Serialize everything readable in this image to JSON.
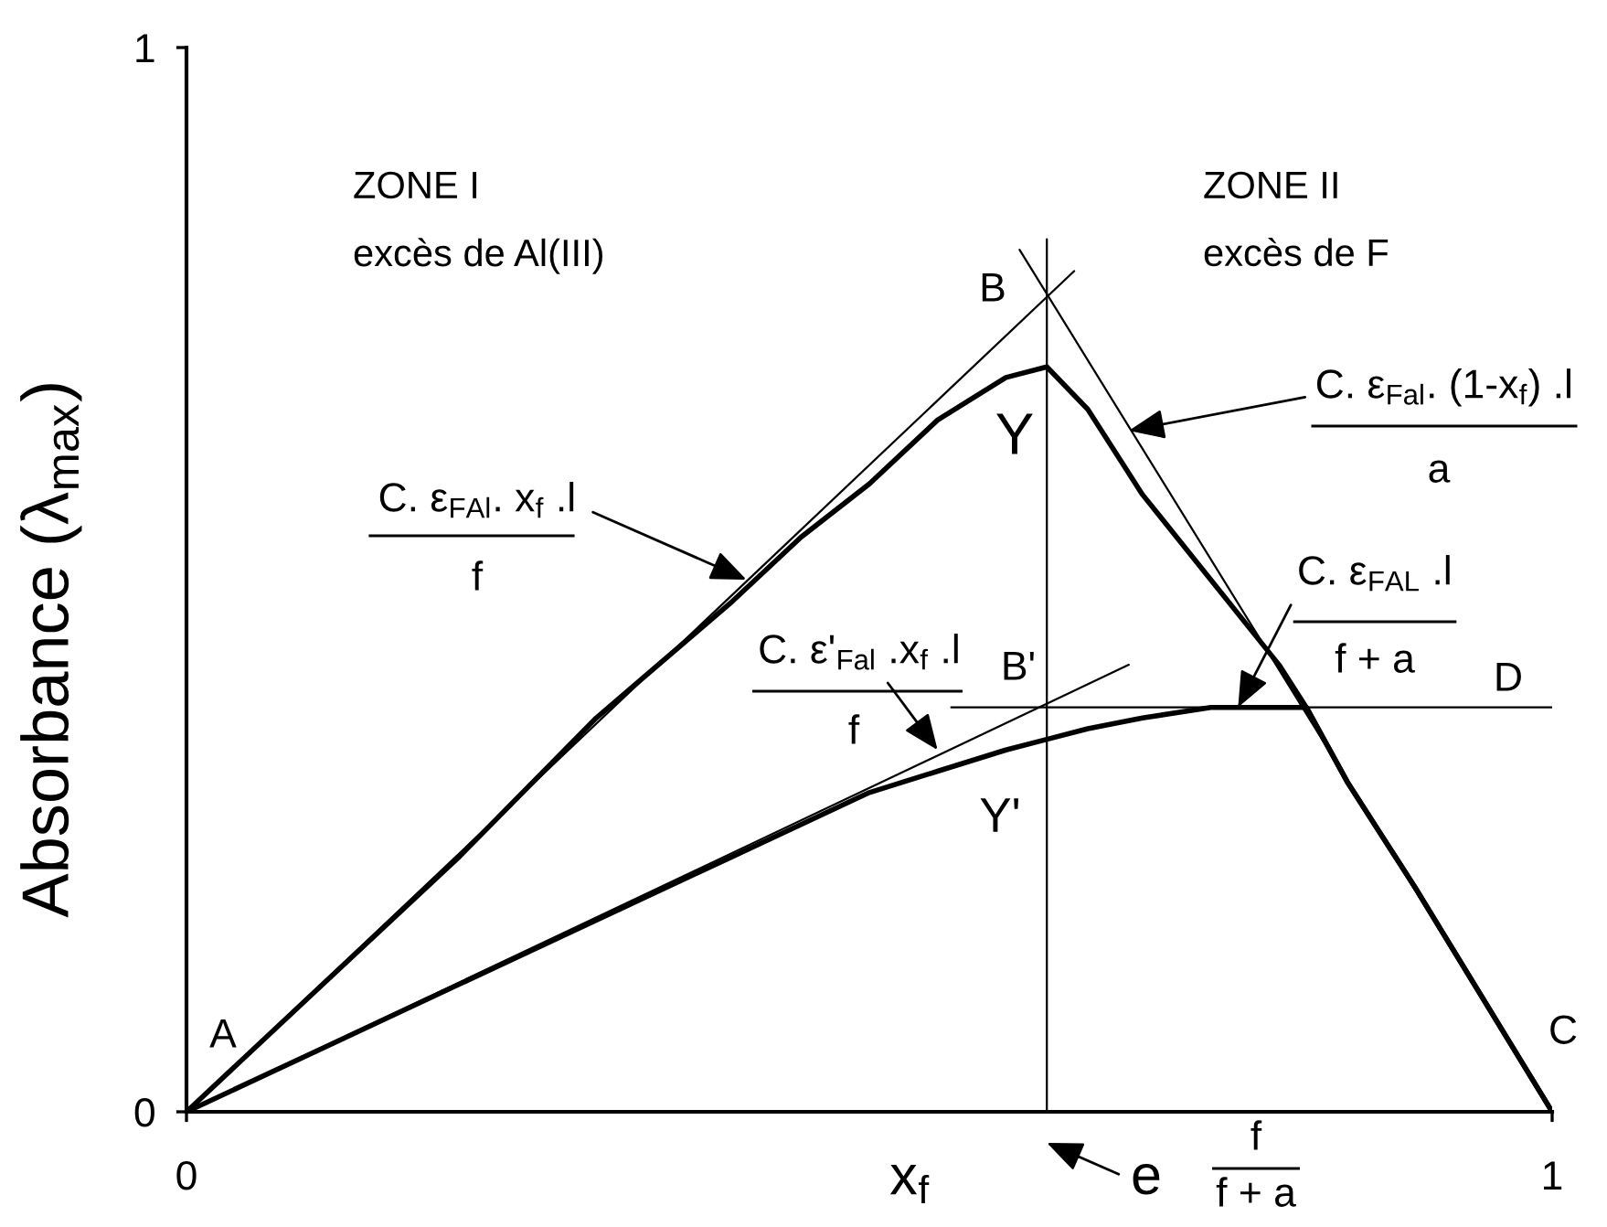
{
  "chart_data": {
    "type": "line",
    "xlabel": "x$_{f}$",
    "ylabel": "Absorbance (λ$_{max}$)",
    "x": [
      0,
      0.1,
      0.2,
      0.3,
      0.4,
      0.45,
      0.5,
      0.55,
      0.6,
      0.63,
      0.66,
      0.7,
      0.75,
      0.8,
      0.82,
      0.85,
      0.9,
      1.0
    ],
    "series": [
      {
        "color": "#000000",
        "values": [
          0,
          0.12,
          0.24,
          0.37,
          0.48,
          0.54,
          0.59,
          0.65,
          0.69,
          0.7,
          0.66,
          0.58,
          0.5,
          0.42,
          0.38,
          0.31,
          0.21,
          0
        ]
      },
      {
        "color": "#000000",
        "values": [
          0,
          0.06,
          0.12,
          0.18,
          0.24,
          0.27,
          0.3,
          0.32,
          0.34,
          0.35,
          0.36,
          0.37,
          0.38,
          0.38,
          0.38,
          0.31,
          0.21,
          0
        ]
      },
      {
        "type": "line",
        "color": "#000000",
        "x": [
          0,
          0.65
        ],
        "values": [
          0,
          0.79
        ]
      },
      {
        "type": "line",
        "color": "#000000",
        "x": [
          0.61,
          1.0
        ],
        "values": [
          0.81,
          0
        ]
      },
      {
        "type": "line",
        "color": "#000000",
        "x": [
          0,
          0.69
        ],
        "values": [
          0,
          0.42
        ]
      },
      {
        "type": "line",
        "color": "#000000",
        "x": [
          0.56,
          1.0
        ],
        "values": [
          0.38,
          0.38
        ]
      },
      {
        "type": "line",
        "color": "#000000",
        "x": [
          0.63,
          0.63
        ],
        "values": [
          0,
          0.82
        ]
      }
    ],
    "xlim": [
      0,
      1
    ],
    "ylim": [
      0,
      1
    ],
    "xticks": [
      0,
      1
    ],
    "yticks": [
      0,
      1
    ],
    "line_style": "solid",
    "annotations": [
      "ZONE I",
      "excès de Al(III)",
      "ZONE II",
      "excès de F",
      {
        "text": "A",
        "x": 0,
        "y": 0
      },
      {
        "text": "B",
        "x": 0.63,
        "y": 0.77
      },
      {
        "text": "Y",
        "x": 0.63,
        "y": 0.7
      },
      {
        "text": "B'",
        "x": 0.63,
        "y": 0.38
      },
      {
        "text": "Y'",
        "x": 0.63,
        "y": 0.35
      },
      {
        "text": "C",
        "x": 1,
        "y": 0
      },
      {
        "text": "D",
        "x": 1,
        "y": 0.38
      },
      {
        "text": "C. ε$_{FAl}$. x$_{f}$ .l",
        "x": 0.41,
        "y": 0.5
      },
      {
        "text": "C. ε$_{Fal}$. (1-x$_{f}$) .l",
        "x": 0.69,
        "y": 0.64
      },
      {
        "text": "C. ε$_{FAL}$ .l",
        "x": 0.77,
        "y": 0.38
      },
      {
        "text": "C. ε'$_{Fal}$ .x$_{f}$ .l",
        "x": 0.55,
        "y": 0.34
      },
      {
        "text": "e",
        "x": 0.63,
        "y": 0
      },
      "f",
      "a",
      "f + a",
      "f",
      "f",
      "f + a"
    ]
  }
}
